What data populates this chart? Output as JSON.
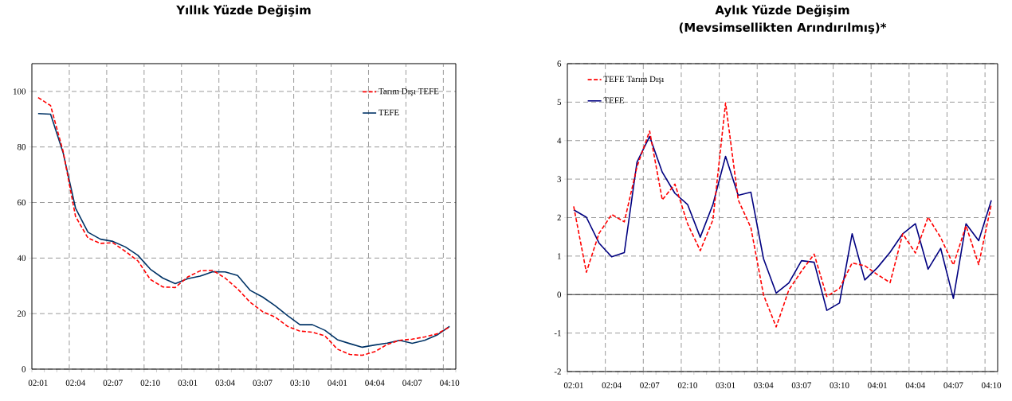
{
  "chart_data": [
    {
      "type": "line",
      "title": "Yıllık Yüzde Değişim",
      "categories": [
        "02:01",
        null,
        null,
        "02:04",
        null,
        null,
        "02:07",
        null,
        null,
        "02:10",
        null,
        null,
        "03:01",
        null,
        null,
        "03:04",
        null,
        null,
        "03:07",
        null,
        null,
        "03:10",
        null,
        null,
        "04:01",
        null,
        null,
        "04:04",
        null,
        null,
        "04:07",
        null,
        null,
        "04:10"
      ],
      "series": [
        {
          "name": "Tarım Dışı TEFE",
          "color": "#ff0000",
          "line_style": "dashed",
          "values": [
            97.8,
            94.9,
            78.5,
            55,
            47.2,
            45.3,
            45.5,
            42.4,
            39,
            32.3,
            29.6,
            29.4,
            33.2,
            35.4,
            35.6,
            32.8,
            28.9,
            24.1,
            20.7,
            18.8,
            15.4,
            13.7,
            13.3,
            12.0,
            7.2,
            5.3,
            5.0,
            6.3,
            8.9,
            10.4,
            10.8,
            11.6,
            12.7,
            15.2
          ]
        },
        {
          "name": "TEFE",
          "color": "#003366",
          "line_style": "solid",
          "values": [
            92.0,
            91.8,
            78,
            58,
            49.3,
            46.8,
            46,
            44,
            41,
            36,
            32.8,
            30.8,
            32.6,
            33.5,
            35.1,
            35,
            33.7,
            28.4,
            26.0,
            22.9,
            19.3,
            16.0,
            16.0,
            14.0,
            10.6,
            9.2,
            7.9,
            8.7,
            9.4,
            10.4,
            9.3,
            10.4,
            12.3,
            15.4
          ]
        }
      ],
      "ylim": [
        0,
        110
      ],
      "yticks": [
        0,
        20,
        40,
        60,
        80,
        100
      ],
      "grid": true,
      "legend": "top right",
      "marker": "none"
    },
    {
      "type": "line",
      "title": "Aylık Yüzde Değişim",
      "subtitle": "(Mevsimsellikten Arındırılmış)*",
      "categories": [
        "02:01",
        null,
        null,
        "02:04",
        null,
        null,
        "02:07",
        null,
        null,
        "02:10",
        null,
        null,
        "03:01",
        null,
        null,
        "03:04",
        null,
        null,
        "03:07",
        null,
        null,
        "03:10",
        null,
        null,
        "04:01",
        null,
        null,
        "04:04",
        null,
        null,
        "04:07",
        null,
        null,
        "04:10"
      ],
      "series": [
        {
          "name": "TEFE Tarım Dışı",
          "color": "#ff0000",
          "line_style": "dashed",
          "values": [
            2.29,
            0.58,
            1.59,
            2.08,
            1.89,
            3.32,
            4.25,
            2.46,
            2.87,
            1.84,
            1.14,
            1.94,
            4.98,
            2.46,
            1.74,
            -0.01,
            -0.84,
            0.12,
            0.61,
            1.05,
            -0.05,
            0.16,
            0.82,
            0.75,
            0.52,
            0.31,
            1.58,
            1.08,
            2.01,
            1.48,
            0.77,
            1.79,
            0.78,
            2.35
          ]
        },
        {
          "name": "TEFE",
          "color": "#000080",
          "line_style": "solid",
          "values": [
            2.2,
            2.01,
            1.34,
            0.98,
            1.09,
            3.44,
            4.11,
            3.18,
            2.63,
            2.34,
            1.49,
            2.34,
            3.59,
            2.58,
            2.66,
            0.93,
            0.04,
            0.3,
            0.88,
            0.84,
            -0.41,
            -0.22,
            1.58,
            0.38,
            0.7,
            1.1,
            1.58,
            1.84,
            0.66,
            1.2,
            -0.1,
            1.84,
            1.4,
            2.45
          ]
        }
      ],
      "ylim": [
        -2,
        6
      ],
      "yticks": [
        -2,
        -1,
        0,
        1,
        2,
        3,
        4,
        5,
        6
      ],
      "grid": true,
      "legend": "top left",
      "marker": "none"
    }
  ]
}
